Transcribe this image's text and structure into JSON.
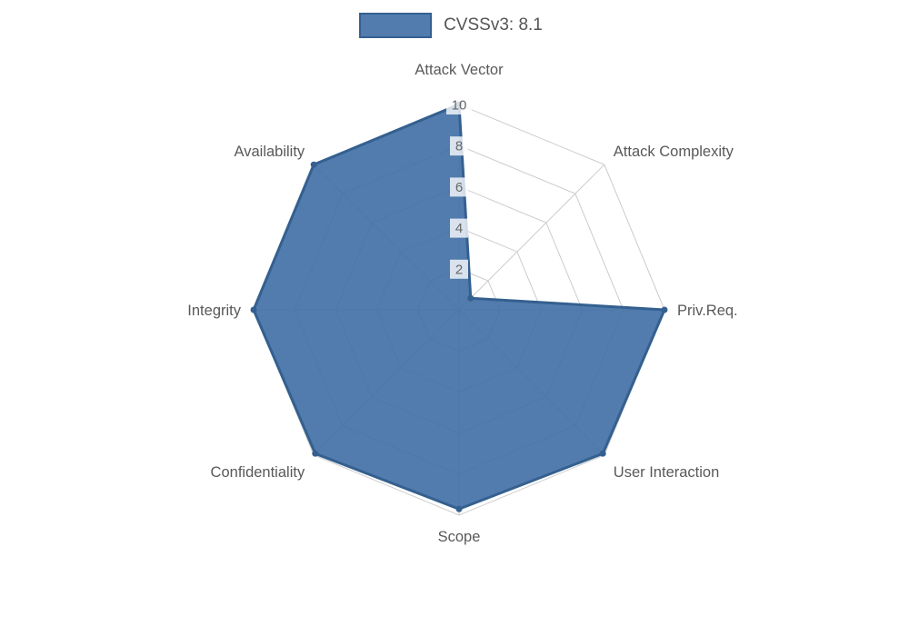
{
  "chart_data": {
    "type": "radar",
    "legend_label": "CVSSv3: 8.1",
    "categories": [
      "Attack Vector",
      "Attack Complexity",
      "Priv.Req.",
      "User Interaction",
      "Scope",
      "Confidentiality",
      "Integrity",
      "Availability"
    ],
    "values": [
      10,
      0.8,
      10,
      9.9,
      9.7,
      9.9,
      10,
      10
    ],
    "ticks": [
      2,
      4,
      6,
      8,
      10
    ],
    "ylim": [
      0,
      10
    ],
    "grid": true,
    "legend_position": "top",
    "colors": {
      "fill": "rgba(63,110,165,0.9)",
      "border": "#34608f",
      "grid": "#cccccc",
      "axis_label": "#595959",
      "tick_label": "#666666",
      "tick_backdrop": "rgba(255,255,255,0.78)"
    }
  }
}
